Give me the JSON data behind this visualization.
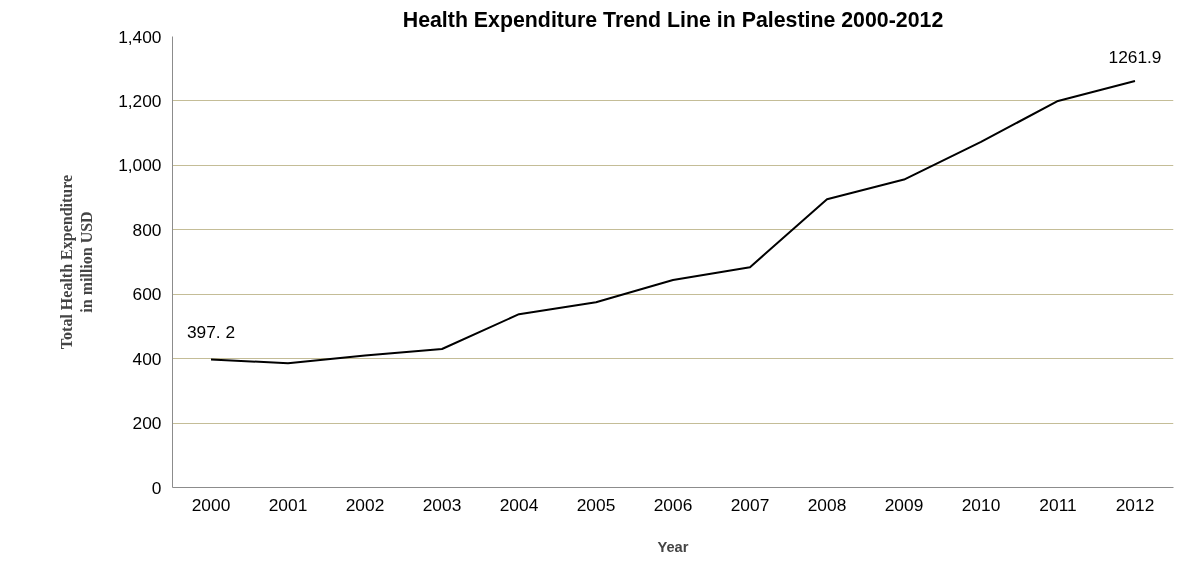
{
  "chart_data": {
    "type": "line",
    "title": "Health Expenditure Trend Line in Palestine 2000-2012",
    "xlabel": "Year",
    "ylabel": "Total Health Expenditure\nin million USD",
    "categories": [
      "2000",
      "2001",
      "2002",
      "2003",
      "2004",
      "2005",
      "2006",
      "2007",
      "2008",
      "2009",
      "2010",
      "2011",
      "2012"
    ],
    "series": [
      {
        "color": "#000000",
        "values": [
          397.2,
          386,
          410,
          430,
          538,
          575,
          644,
          684,
          895,
          956,
          1073,
          1200,
          1261.9
        ],
        "value_labels": [
          "397. 2",
          null,
          null,
          null,
          null,
          null,
          null,
          null,
          null,
          null,
          null,
          null,
          "1261.9"
        ]
      }
    ],
    "ylim": [
      0,
      1400
    ],
    "yticks": [
      {
        "value": 0,
        "label": "0"
      },
      {
        "value": 200,
        "label": "200"
      },
      {
        "value": 400,
        "label": "400"
      },
      {
        "value": 600,
        "label": "600"
      },
      {
        "value": 800,
        "label": "800"
      },
      {
        "value": 1000,
        "label": "1,000"
      },
      {
        "value": 1200,
        "label": "1,200"
      },
      {
        "value": 1400,
        "label": "1,400"
      }
    ],
    "grid": "y",
    "marker": "none",
    "line_style": "solid"
  }
}
